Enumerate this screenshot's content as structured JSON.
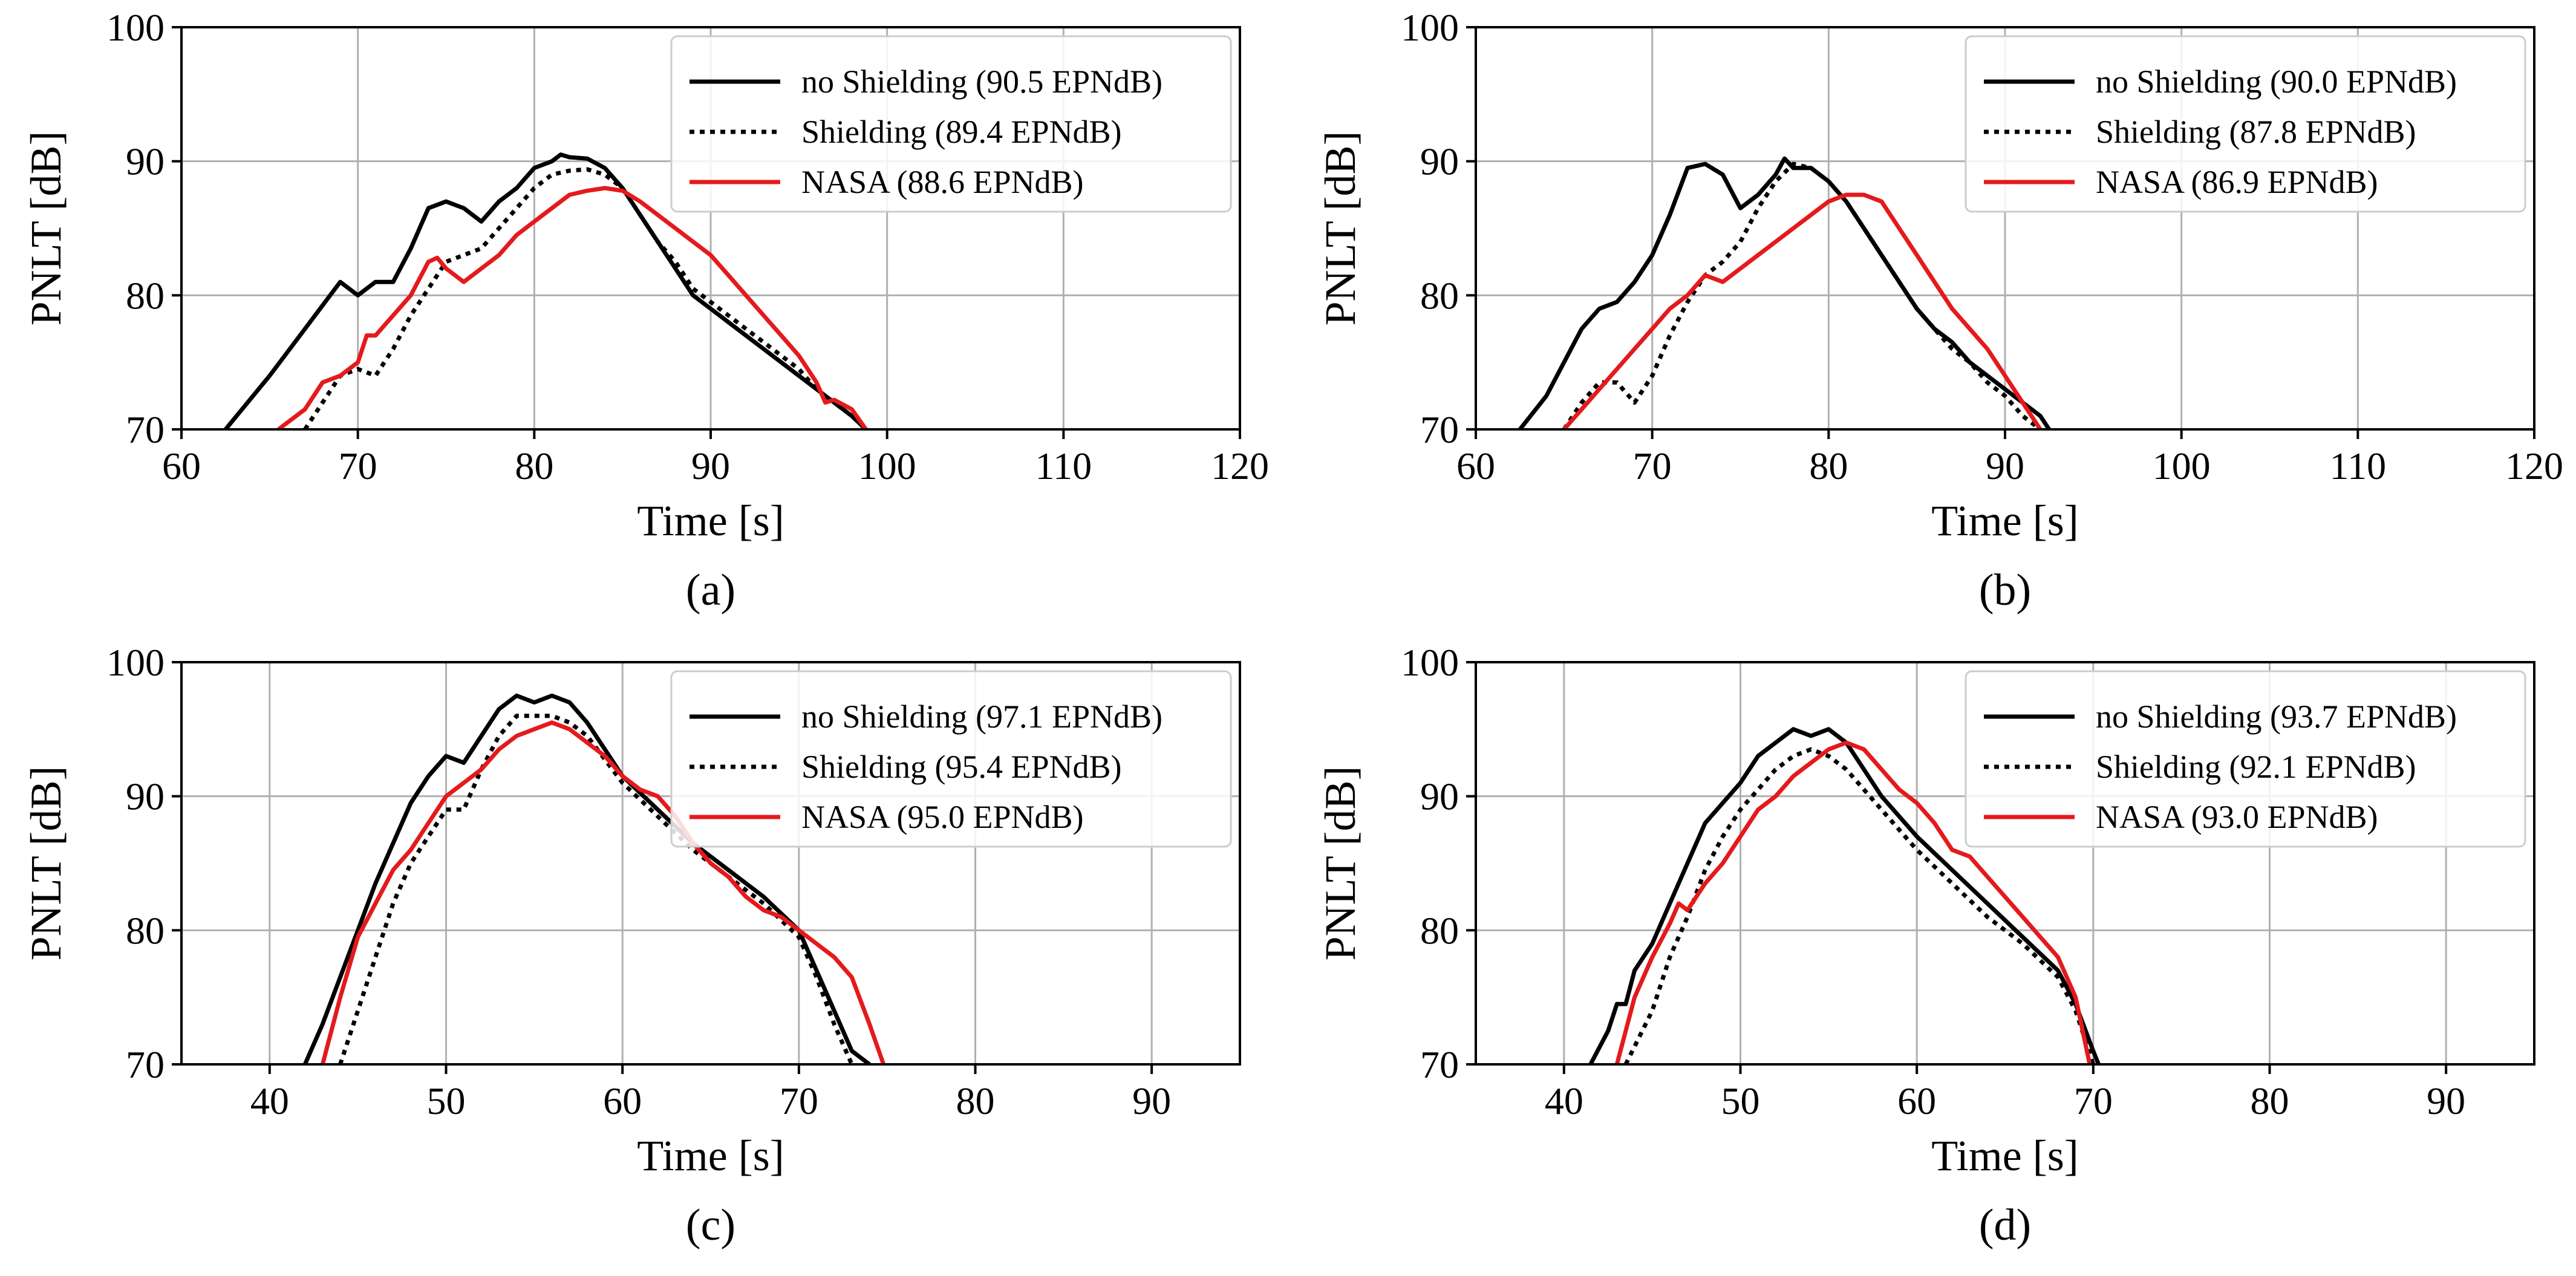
{
  "colors": {
    "no_shielding": "#000000",
    "shielding": "#000000",
    "nasa": "#e41a1c",
    "grid": "#b0b0b0",
    "legend_border": "#cccccc"
  },
  "chart_data": [
    {
      "type": "line",
      "caption": "(a)",
      "xlabel": "Time [s]",
      "ylabel": "PNLT [dB]",
      "xlim": [
        60,
        120
      ],
      "ylim": [
        70,
        100
      ],
      "xticks": [
        60,
        70,
        80,
        90,
        100,
        110,
        120
      ],
      "yticks": [
        70,
        80,
        90,
        100
      ],
      "grid": true,
      "legend_position": "top-right",
      "series": [
        {
          "name": "no Shielding (90.5 EPNdB)",
          "style": "solid",
          "color": "#000000",
          "x": [
            62.5,
            65,
            67,
            69,
            70,
            71,
            72,
            73,
            74,
            75,
            76,
            77,
            78,
            79,
            80,
            81,
            81.5,
            82,
            83,
            84,
            85,
            86,
            87,
            88,
            89,
            90,
            91,
            92,
            93,
            94,
            95,
            96,
            97,
            98,
            98.8
          ],
          "y": [
            70,
            74,
            77.5,
            81,
            80,
            81,
            81,
            83.5,
            86.5,
            87,
            86.5,
            85.5,
            87,
            88,
            89.5,
            90,
            90.5,
            90.3,
            90.2,
            89.5,
            88,
            86,
            84,
            82,
            80,
            79,
            78,
            77,
            76,
            75,
            74,
            73,
            72,
            71,
            70
          ]
        },
        {
          "name": "Shielding (89.4 EPNdB)",
          "style": "dotted",
          "color": "#000000",
          "x": [
            67,
            68,
            69,
            70,
            71,
            72,
            73,
            74,
            75,
            76,
            77,
            78,
            79,
            80,
            81,
            82,
            83,
            84,
            85,
            86,
            87,
            88,
            89,
            90,
            91,
            92,
            93,
            94,
            95,
            96,
            97,
            98,
            98.8
          ],
          "y": [
            70,
            72,
            74,
            74.5,
            74,
            76,
            78.5,
            80.5,
            82.5,
            83,
            83.5,
            85,
            86.5,
            88,
            89,
            89.3,
            89.4,
            89,
            88,
            86,
            84,
            82.5,
            80.5,
            79.5,
            78.5,
            77.5,
            76.5,
            75.5,
            74.5,
            73,
            72,
            71,
            70
          ]
        },
        {
          "name": "NASA (88.6 EPNdB)",
          "style": "solid",
          "color": "#e41a1c",
          "x": [
            65.5,
            66,
            67,
            68,
            69,
            70,
            70.5,
            71,
            72,
            73,
            74,
            74.5,
            75,
            76,
            77,
            78,
            79,
            80,
            81,
            82,
            83,
            84,
            85,
            86,
            87,
            88,
            89,
            90,
            91,
            92,
            93,
            94,
            95,
            96,
            96.5,
            97,
            98,
            98.8
          ],
          "y": [
            70,
            70.5,
            71.5,
            73.5,
            74,
            75,
            77,
            77,
            78.5,
            80,
            82.5,
            82.8,
            82,
            81,
            82,
            83,
            84.5,
            85.5,
            86.5,
            87.5,
            87.8,
            88,
            87.8,
            87,
            86,
            85,
            84,
            83,
            81.5,
            80,
            78.5,
            77,
            75.5,
            73.5,
            72,
            72.2,
            71.5,
            70
          ]
        }
      ]
    },
    {
      "type": "line",
      "caption": "(b)",
      "xlabel": "Time [s]",
      "ylabel": "PNLT [dB]",
      "xlim": [
        60,
        120
      ],
      "ylim": [
        70,
        100
      ],
      "xticks": [
        60,
        70,
        80,
        90,
        100,
        110,
        120
      ],
      "yticks": [
        70,
        80,
        90,
        100
      ],
      "grid": true,
      "legend_position": "top-right",
      "series": [
        {
          "name": "no Shielding (90.0 EPNdB)",
          "style": "solid",
          "color": "#000000",
          "x": [
            62.5,
            64,
            65,
            66,
            67,
            68,
            69,
            70,
            71,
            72,
            73,
            74,
            75,
            76,
            77,
            77.5,
            78,
            79,
            80,
            81,
            82,
            83,
            84,
            85,
            86,
            87,
            88,
            89,
            90,
            91,
            92,
            92.5
          ],
          "y": [
            70,
            72.5,
            75,
            77.5,
            79,
            79.5,
            81,
            83,
            86,
            89.5,
            89.8,
            89,
            86.5,
            87.5,
            89,
            90.2,
            89.5,
            89.5,
            88.5,
            87,
            85,
            83,
            81,
            79,
            77.5,
            76.5,
            75,
            74,
            73,
            72,
            71,
            70
          ]
        },
        {
          "name": "Shielding (87.8 EPNdB)",
          "style": "dotted",
          "color": "#000000",
          "x": [
            65,
            66,
            67,
            68,
            69,
            70,
            71,
            72,
            73,
            74,
            75,
            76,
            77,
            78,
            79,
            80,
            81,
            82,
            83,
            84,
            85,
            86,
            87,
            88,
            89,
            90,
            91,
            92
          ],
          "y": [
            70,
            72,
            73.5,
            73.5,
            72,
            74,
            77,
            79.5,
            81.5,
            82.5,
            84,
            86.5,
            88.5,
            89.8,
            89.5,
            88.5,
            87,
            85,
            83,
            81,
            79,
            77.5,
            76,
            75,
            73.5,
            72.5,
            71,
            70
          ]
        },
        {
          "name": "NASA (86.9 EPNdB)",
          "style": "solid",
          "color": "#e41a1c",
          "x": [
            65,
            66,
            67,
            68,
            69,
            70,
            71,
            72,
            73,
            74,
            75,
            76,
            77,
            78,
            79,
            80,
            81,
            82,
            83,
            84,
            85,
            86,
            87,
            88,
            89,
            90,
            91,
            92
          ],
          "y": [
            70,
            71.5,
            73,
            74.5,
            76,
            77.5,
            79,
            80,
            81.5,
            81,
            82,
            83,
            84,
            85,
            86,
            87,
            87.5,
            87.5,
            87,
            85,
            83,
            81,
            79,
            77.5,
            76,
            74,
            72,
            70
          ]
        }
      ]
    },
    {
      "type": "line",
      "caption": "(c)",
      "xlabel": "Time [s]",
      "ylabel": "PNLT [dB]",
      "xlim": [
        35,
        95
      ],
      "ylim": [
        70,
        100
      ],
      "xticks": [
        40,
        50,
        60,
        70,
        80,
        90
      ],
      "yticks": [
        70,
        80,
        90,
        100
      ],
      "grid": true,
      "legend_position": "top-right",
      "series": [
        {
          "name": "no Shielding (97.1 EPNdB)",
          "style": "solid",
          "color": "#000000",
          "x": [
            42,
            43,
            44,
            45,
            46,
            47,
            48,
            49,
            50,
            51,
            52,
            53,
            54,
            55,
            56,
            57,
            58,
            59,
            60,
            62,
            64,
            66,
            68,
            70,
            71,
            72,
            73,
            74
          ],
          "y": [
            70,
            73,
            76.5,
            80,
            83.5,
            86.5,
            89.5,
            91.5,
            93,
            92.5,
            94.5,
            96.5,
            97.5,
            97,
            97.5,
            97,
            95.5,
            93.5,
            91.5,
            89,
            86.5,
            84.5,
            82.5,
            80,
            77,
            74,
            71,
            70
          ]
        },
        {
          "name": "Shielding (95.4 EPNdB)",
          "style": "dotted",
          "color": "#000000",
          "x": [
            44,
            45,
            46,
            47,
            48,
            49,
            50,
            51,
            52,
            53,
            54,
            55,
            56,
            57,
            58,
            60,
            62,
            64,
            66,
            68,
            70,
            71,
            72,
            73
          ],
          "y": [
            70,
            74,
            78,
            82,
            85,
            87,
            89,
            89,
            92,
            94.5,
            96,
            96,
            96,
            95.5,
            94.5,
            91,
            88.5,
            86,
            84,
            82,
            79.5,
            76.5,
            73,
            70
          ]
        },
        {
          "name": "NASA (95.0 EPNdB)",
          "style": "solid",
          "color": "#e41a1c",
          "x": [
            43,
            44,
            45,
            46,
            47,
            48,
            49,
            50,
            51,
            52,
            53,
            54,
            55,
            56,
            57,
            58,
            59,
            60,
            61,
            62,
            63,
            64,
            65,
            66,
            67,
            68,
            69,
            70,
            71,
            72,
            73,
            74,
            74.8
          ],
          "y": [
            70,
            75,
            79.5,
            82,
            84.5,
            86,
            88,
            90,
            91,
            92,
            93.5,
            94.5,
            95,
            95.5,
            95,
            94,
            93,
            91.5,
            90.5,
            90,
            88.5,
            86.5,
            85,
            84,
            82.5,
            81.5,
            81,
            80,
            79,
            78,
            76.5,
            73,
            70
          ]
        }
      ]
    },
    {
      "type": "line",
      "caption": "(d)",
      "xlabel": "Time [s]",
      "ylabel": "PNLT [dB]",
      "xlim": [
        35,
        95
      ],
      "ylim": [
        70,
        100
      ],
      "xticks": [
        40,
        50,
        60,
        70,
        80,
        90
      ],
      "yticks": [
        70,
        80,
        90,
        100
      ],
      "grid": true,
      "legend_position": "top-right",
      "series": [
        {
          "name": "no Shielding (93.7 EPNdB)",
          "style": "solid",
          "color": "#000000",
          "x": [
            41.5,
            42.5,
            43,
            43.5,
            44,
            45,
            46,
            47,
            48,
            49,
            50,
            51,
            52,
            53,
            54,
            55,
            56,
            57,
            58,
            60,
            62,
            64,
            66,
            68,
            69,
            70,
            70.3
          ],
          "y": [
            70,
            72.5,
            74.5,
            74.5,
            77,
            79,
            82,
            85,
            88,
            89.5,
            91,
            93,
            94,
            95,
            94.5,
            95,
            94,
            92,
            90,
            87,
            84.5,
            82,
            79.5,
            77,
            74.5,
            71,
            70
          ]
        },
        {
          "name": "Shielding (92.1 EPNdB)",
          "style": "dotted",
          "color": "#000000",
          "x": [
            43.5,
            45,
            46,
            47,
            48,
            49,
            50,
            51,
            52,
            53,
            54,
            55,
            56,
            57,
            58,
            60,
            62,
            64,
            66,
            68,
            69,
            70
          ],
          "y": [
            70,
            74,
            78,
            81,
            84.5,
            87,
            89,
            90.5,
            92,
            93,
            93.5,
            93,
            92,
            90.5,
            89,
            86,
            83.5,
            81,
            79,
            76.5,
            74,
            70
          ]
        },
        {
          "name": "NASA (93.0 EPNdB)",
          "style": "solid",
          "color": "#e41a1c",
          "x": [
            43,
            44,
            45,
            46,
            46.5,
            47,
            48,
            49,
            50,
            51,
            52,
            53,
            54,
            55,
            56,
            57,
            58,
            59,
            60,
            61,
            62,
            63,
            64,
            65,
            66,
            67,
            68,
            69,
            69.8
          ],
          "y": [
            70,
            75,
            78,
            80.5,
            82,
            81.5,
            83.5,
            85,
            87,
            89,
            90,
            91.5,
            92.5,
            93.5,
            94,
            93.5,
            92,
            90.5,
            89.5,
            88,
            86,
            85.5,
            84,
            82.5,
            81,
            79.5,
            78,
            75,
            70
          ]
        }
      ]
    }
  ]
}
